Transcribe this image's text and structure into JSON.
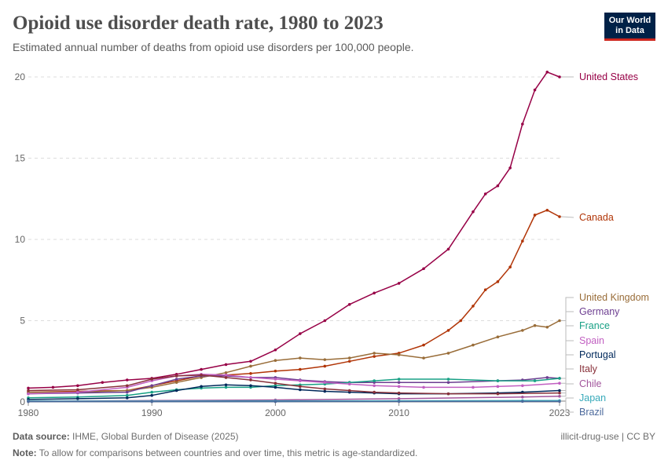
{
  "header": {
    "title": "Opioid use disorder death rate, 1980 to 2023",
    "subtitle": "Estimated annual number of deaths from opioid use disorders per 100,000 people."
  },
  "logo": {
    "line1": "Our World",
    "line2": "in Data"
  },
  "footer": {
    "source_label": "Data source:",
    "source_text": "IHME, Global Burden of Disease (2025)",
    "note_label": "Note:",
    "note_text": "To allow for comparisons between countries and over time, this metric is age-standardized.",
    "right_text": "illicit-drug-use | CC BY"
  },
  "chart_data": {
    "type": "line",
    "title": "Opioid use disorder death rate, 1980 to 2023",
    "xlabel": "",
    "ylabel": "",
    "xlim": [
      1980,
      2023
    ],
    "ylim": [
      0,
      20
    ],
    "x_ticks": [
      1980,
      1990,
      2000,
      2010,
      2023
    ],
    "y_ticks": [
      0,
      5,
      10,
      15,
      20
    ],
    "grid": "horizontal dashed",
    "legend": "right, labels at line ends",
    "series": [
      {
        "name": "United States",
        "color": "#970046",
        "values": [
          [
            1980,
            0.85
          ],
          [
            1982,
            0.9
          ],
          [
            1984,
            1.0
          ],
          [
            1986,
            1.2
          ],
          [
            1988,
            1.35
          ],
          [
            1990,
            1.45
          ],
          [
            1992,
            1.7
          ],
          [
            1994,
            2.0
          ],
          [
            1996,
            2.3
          ],
          [
            1998,
            2.5
          ],
          [
            2000,
            3.2
          ],
          [
            2002,
            4.2
          ],
          [
            2004,
            5.0
          ],
          [
            2006,
            6.0
          ],
          [
            2008,
            6.7
          ],
          [
            2010,
            7.3
          ],
          [
            2012,
            8.2
          ],
          [
            2014,
            9.4
          ],
          [
            2016,
            11.7
          ],
          [
            2017,
            12.8
          ],
          [
            2018,
            13.3
          ],
          [
            2019,
            14.4
          ],
          [
            2020,
            17.1
          ],
          [
            2021,
            19.2
          ],
          [
            2022,
            20.3
          ],
          [
            2023,
            20.0
          ]
        ]
      },
      {
        "name": "Canada",
        "color": "#b13507",
        "values": [
          [
            1980,
            0.6
          ],
          [
            1984,
            0.65
          ],
          [
            1988,
            0.7
          ],
          [
            1990,
            1.0
          ],
          [
            1992,
            1.3
          ],
          [
            1994,
            1.6
          ],
          [
            1996,
            1.65
          ],
          [
            1998,
            1.75
          ],
          [
            2000,
            1.9
          ],
          [
            2002,
            2.0
          ],
          [
            2004,
            2.2
          ],
          [
            2006,
            2.5
          ],
          [
            2008,
            2.8
          ],
          [
            2010,
            3.0
          ],
          [
            2012,
            3.5
          ],
          [
            2014,
            4.4
          ],
          [
            2015,
            5.0
          ],
          [
            2016,
            5.9
          ],
          [
            2017,
            6.9
          ],
          [
            2018,
            7.4
          ],
          [
            2019,
            8.3
          ],
          [
            2020,
            9.9
          ],
          [
            2021,
            11.5
          ],
          [
            2022,
            11.8
          ],
          [
            2023,
            11.4
          ]
        ]
      },
      {
        "name": "United Kingdom",
        "color": "#996d39",
        "values": [
          [
            1980,
            0.6
          ],
          [
            1984,
            0.6
          ],
          [
            1988,
            0.7
          ],
          [
            1990,
            0.9
          ],
          [
            1992,
            1.2
          ],
          [
            1994,
            1.5
          ],
          [
            1996,
            1.8
          ],
          [
            1998,
            2.2
          ],
          [
            2000,
            2.55
          ],
          [
            2002,
            2.7
          ],
          [
            2004,
            2.6
          ],
          [
            2006,
            2.7
          ],
          [
            2008,
            3.0
          ],
          [
            2010,
            2.9
          ],
          [
            2012,
            2.7
          ],
          [
            2014,
            3.0
          ],
          [
            2016,
            3.5
          ],
          [
            2018,
            4.0
          ],
          [
            2020,
            4.4
          ],
          [
            2021,
            4.7
          ],
          [
            2022,
            4.6
          ],
          [
            2023,
            5.0
          ]
        ]
      },
      {
        "name": "Germany",
        "color": "#6d3e91",
        "values": [
          [
            1980,
            0.5
          ],
          [
            1984,
            0.55
          ],
          [
            1988,
            0.6
          ],
          [
            1990,
            1.0
          ],
          [
            1992,
            1.4
          ],
          [
            1994,
            1.6
          ],
          [
            1996,
            1.6
          ],
          [
            1998,
            1.5
          ],
          [
            2000,
            1.5
          ],
          [
            2002,
            1.35
          ],
          [
            2004,
            1.25
          ],
          [
            2006,
            1.2
          ],
          [
            2008,
            1.2
          ],
          [
            2010,
            1.2
          ],
          [
            2014,
            1.2
          ],
          [
            2018,
            1.3
          ],
          [
            2020,
            1.35
          ],
          [
            2022,
            1.5
          ],
          [
            2023,
            1.45
          ]
        ]
      },
      {
        "name": "France",
        "color": "#18a085",
        "values": [
          [
            1980,
            0.25
          ],
          [
            1984,
            0.3
          ],
          [
            1988,
            0.4
          ],
          [
            1990,
            0.6
          ],
          [
            1992,
            0.75
          ],
          [
            1994,
            0.85
          ],
          [
            1996,
            0.9
          ],
          [
            1998,
            0.9
          ],
          [
            2000,
            1.0
          ],
          [
            2002,
            1.05
          ],
          [
            2004,
            1.1
          ],
          [
            2006,
            1.2
          ],
          [
            2008,
            1.3
          ],
          [
            2010,
            1.4
          ],
          [
            2014,
            1.4
          ],
          [
            2018,
            1.3
          ],
          [
            2021,
            1.3
          ],
          [
            2023,
            1.45
          ]
        ]
      },
      {
        "name": "Spain",
        "color": "#c15fc1",
        "values": [
          [
            1980,
            0.5
          ],
          [
            1984,
            0.6
          ],
          [
            1988,
            0.9
          ],
          [
            1990,
            1.3
          ],
          [
            1992,
            1.6
          ],
          [
            1994,
            1.7
          ],
          [
            1996,
            1.65
          ],
          [
            1998,
            1.5
          ],
          [
            2000,
            1.4
          ],
          [
            2002,
            1.3
          ],
          [
            2004,
            1.2
          ],
          [
            2006,
            1.1
          ],
          [
            2008,
            1.0
          ],
          [
            2010,
            0.95
          ],
          [
            2012,
            0.9
          ],
          [
            2016,
            0.9
          ],
          [
            2018,
            0.95
          ],
          [
            2020,
            1.0
          ],
          [
            2023,
            1.15
          ]
        ]
      },
      {
        "name": "Portugal",
        "color": "#00295b",
        "values": [
          [
            1980,
            0.15
          ],
          [
            1984,
            0.2
          ],
          [
            1988,
            0.25
          ],
          [
            1990,
            0.4
          ],
          [
            1992,
            0.7
          ],
          [
            1994,
            0.95
          ],
          [
            1996,
            1.05
          ],
          [
            1998,
            1.0
          ],
          [
            2000,
            0.9
          ],
          [
            2002,
            0.75
          ],
          [
            2004,
            0.65
          ],
          [
            2006,
            0.6
          ],
          [
            2008,
            0.55
          ],
          [
            2010,
            0.5
          ],
          [
            2014,
            0.5
          ],
          [
            2018,
            0.55
          ],
          [
            2020,
            0.6
          ],
          [
            2023,
            0.7
          ]
        ]
      },
      {
        "name": "Italy",
        "color": "#883039",
        "values": [
          [
            1980,
            0.7
          ],
          [
            1984,
            0.75
          ],
          [
            1988,
            1.0
          ],
          [
            1990,
            1.4
          ],
          [
            1992,
            1.6
          ],
          [
            1994,
            1.65
          ],
          [
            1996,
            1.5
          ],
          [
            1998,
            1.35
          ],
          [
            2000,
            1.15
          ],
          [
            2002,
            0.95
          ],
          [
            2004,
            0.8
          ],
          [
            2006,
            0.7
          ],
          [
            2008,
            0.6
          ],
          [
            2010,
            0.55
          ],
          [
            2014,
            0.5
          ],
          [
            2018,
            0.5
          ],
          [
            2023,
            0.55
          ]
        ]
      },
      {
        "name": "Chile",
        "color": "#a2559c",
        "values": [
          [
            1980,
            0.05
          ],
          [
            1990,
            0.08
          ],
          [
            2000,
            0.12
          ],
          [
            2010,
            0.2
          ],
          [
            2020,
            0.3
          ],
          [
            2023,
            0.35
          ]
        ]
      },
      {
        "name": "Japan",
        "color": "#38aaba",
        "values": [
          [
            1980,
            0.05
          ],
          [
            1990,
            0.05
          ],
          [
            2000,
            0.06
          ],
          [
            2010,
            0.07
          ],
          [
            2020,
            0.08
          ],
          [
            2023,
            0.08
          ]
        ]
      },
      {
        "name": "Brazil",
        "color": "#4c6a9c",
        "values": [
          [
            1980,
            0.02
          ],
          [
            1990,
            0.02
          ],
          [
            2000,
            0.02
          ],
          [
            2010,
            0.03
          ],
          [
            2020,
            0.03
          ],
          [
            2023,
            0.03
          ]
        ]
      }
    ]
  }
}
